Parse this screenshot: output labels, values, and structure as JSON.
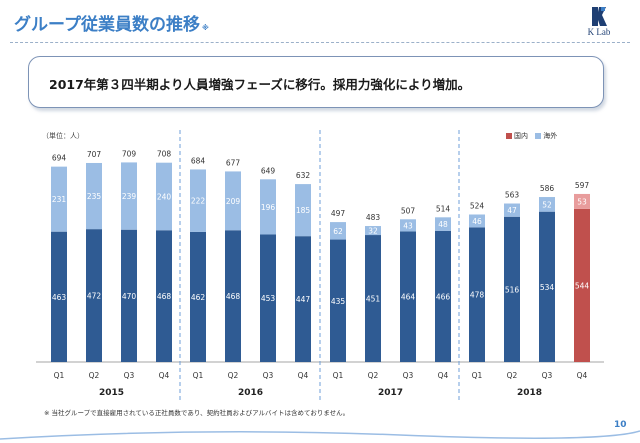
{
  "header": {
    "title": "グループ従業員数の推移",
    "title_mark": "※",
    "logo_text": "K Lab"
  },
  "callout": {
    "text": "2017年第３四半期より人員増強フェーズに移行。採用力強化により増加。"
  },
  "footnote": "※ 当社グループで直接雇用されている正社員数であり、契約社員およびアルバイトは含めておりません。",
  "page_number": "10",
  "colors": {
    "domestic": "#2f5b93",
    "overseas": "#9bbde4",
    "domestic_highlight": "#c0504d",
    "overseas_highlight": "#e89c9c",
    "title": "#3c7fc6"
  },
  "chart_data": {
    "type": "bar",
    "stacked": true,
    "unit_label": "（単位：人）",
    "categories": [
      "Q1",
      "Q2",
      "Q3",
      "Q4",
      "Q1",
      "Q2",
      "Q3",
      "Q4",
      "Q1",
      "Q2",
      "Q3",
      "Q4",
      "Q1",
      "Q2",
      "Q3",
      "Q4"
    ],
    "groups": [
      {
        "label": "2015",
        "count": 4
      },
      {
        "label": "2016",
        "count": 4
      },
      {
        "label": "2017",
        "count": 4
      },
      {
        "label": "2018",
        "count": 4
      }
    ],
    "series": [
      {
        "name": "国内",
        "values": [
          463,
          472,
          470,
          468,
          462,
          468,
          453,
          447,
          435,
          451,
          464,
          466,
          478,
          516,
          534,
          544
        ]
      },
      {
        "name": "海外",
        "values": [
          231,
          235,
          239,
          240,
          222,
          209,
          196,
          185,
          62,
          32,
          43,
          48,
          46,
          47,
          52,
          53
        ]
      }
    ],
    "totals": [
      694,
      707,
      709,
      708,
      684,
      677,
      649,
      632,
      497,
      483,
      507,
      514,
      524,
      563,
      586,
      597
    ],
    "highlight_index": 15,
    "ylim": [
      0,
      750
    ],
    "grid": false,
    "legend_position": "top-right"
  }
}
